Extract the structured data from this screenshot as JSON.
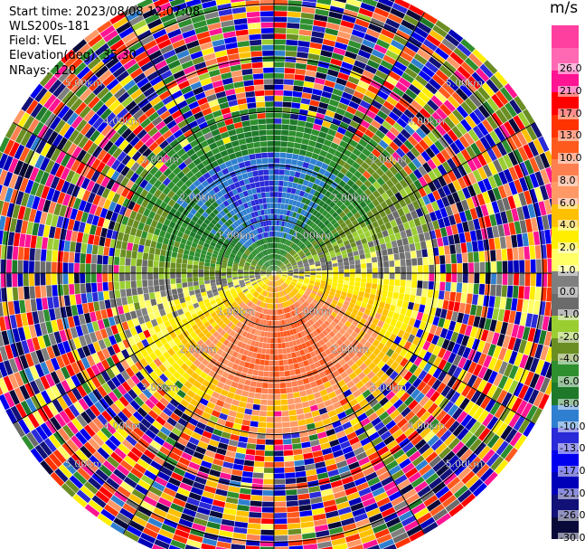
{
  "info": {
    "start_time": "Start time: 2023/08/08 12:07:08",
    "site": "WLS200s-181",
    "field": "Field: VEL",
    "elevation": "Elevation(deg): 35.30",
    "nrays": "NRays: 120"
  },
  "colorbar": {
    "unit": "m/s",
    "bins": [
      {
        "label": "-30.0",
        "color": "#0a0a3a"
      },
      {
        "label": "-26.0",
        "color": "#111178"
      },
      {
        "label": "-21.0",
        "color": "#0000b8"
      },
      {
        "label": "-17.0",
        "color": "#0000ee"
      },
      {
        "label": "-13.0",
        "color": "#2a2ad8"
      },
      {
        "label": "-10.0",
        "color": "#2f7fd0"
      },
      {
        "label": "-8.0",
        "color": "#1e7a2a"
      },
      {
        "label": "-6.0",
        "color": "#2e8f2e"
      },
      {
        "label": "-4.0",
        "color": "#6b8e23"
      },
      {
        "label": "-2.0",
        "color": "#9acd32"
      },
      {
        "label": "-1.0",
        "color": "#6b6b6b"
      },
      {
        "label": "0.0",
        "color": "#7f7f7f"
      },
      {
        "label": "1.0",
        "color": "#ffff66"
      },
      {
        "label": "2.0",
        "color": "#ffee00"
      },
      {
        "label": "4.0",
        "color": "#ffc000"
      },
      {
        "label": "6.0",
        "color": "#ff9966"
      },
      {
        "label": "8.0",
        "color": "#ff7f50"
      },
      {
        "label": "10.0",
        "color": "#ff5a1e"
      },
      {
        "label": "13.0",
        "color": "#ff3300"
      },
      {
        "label": "17.0",
        "color": "#ff0000"
      },
      {
        "label": "21.0",
        "color": "#ff1493"
      },
      {
        "label": "26.0",
        "color": "#ff69b4"
      }
    ],
    "top_color": "#ff3fa0"
  },
  "chart_data": {
    "type": "heatmap",
    "projection": "polar PPI",
    "field": "VEL",
    "units": "m/s",
    "n_rays": 120,
    "elevation_deg": 35.3,
    "range_rings_km": [
      1.0,
      2.0,
      3.0,
      4.0,
      5.0
    ],
    "ring_labels": [
      "1.00km",
      "2.00km",
      "3.00km",
      "4.00km",
      "5.00km"
    ],
    "max_range_km": 5.6,
    "clim": [
      -30.0,
      26.0
    ],
    "gate_spacing_km": 0.105,
    "velocity_pattern": {
      "description": "dipole: negative (approaching) to the north-west, positive (receding) to the south-south-east, noisy speckle beyond ~3 km",
      "negative_core_azimuth_deg": 315,
      "positive_core_azimuth_deg": 170,
      "peak_speed_ms": 10.0,
      "clean_range_km": 3.0
    }
  }
}
